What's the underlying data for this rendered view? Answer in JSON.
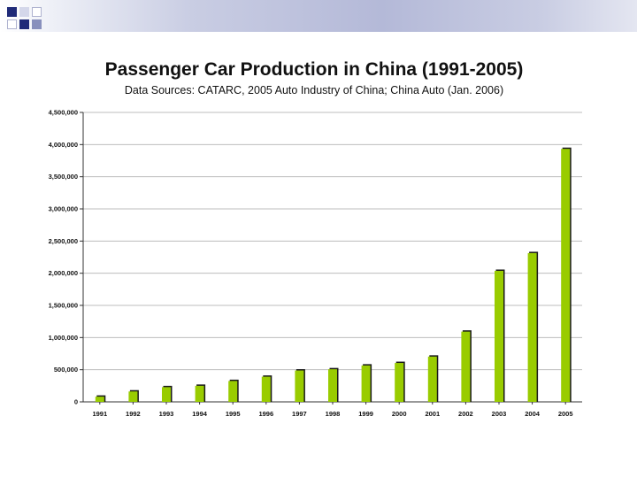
{
  "slide": {
    "title": "Passenger Car Production in China (1991-2005)",
    "subtitle": "Data Sources: CATARC, 2005 Auto Industry of China; China Auto (Jan. 2006)"
  },
  "colors": {
    "bar_fill": "#99cc00",
    "bar_shadow": "#1a1a1a",
    "grid": "#bdbdbd",
    "accent": "#1f2a78"
  },
  "chart_data": {
    "type": "bar",
    "title": "Passenger Car Production in China (1991-2005)",
    "subtitle": "Data Sources: CATARC, 2005 Auto Industry of China; China Auto (Jan. 2006)",
    "xlabel": "",
    "ylabel": "",
    "categories": [
      "1991",
      "1992",
      "1993",
      "1994",
      "1995",
      "1996",
      "1997",
      "1998",
      "1999",
      "2000",
      "2001",
      "2002",
      "2003",
      "2004",
      "2005"
    ],
    "values": [
      81000,
      162000,
      229000,
      250000,
      325000,
      391000,
      488000,
      507000,
      566000,
      605000,
      704000,
      1092000,
      2037000,
      2313000,
      3933000
    ],
    "ylim": [
      0,
      4500000
    ],
    "yticks": [
      0,
      500000,
      1000000,
      1500000,
      2000000,
      2500000,
      3000000,
      3500000,
      4000000,
      4500000
    ],
    "ytick_labels": [
      "0",
      "500,000",
      "1,000,000",
      "1,500,000",
      "2,000,000",
      "2,500,000",
      "3,000,000",
      "3,500,000",
      "4,000,000",
      "4,500,000"
    ],
    "grid": true,
    "legend": "none"
  }
}
